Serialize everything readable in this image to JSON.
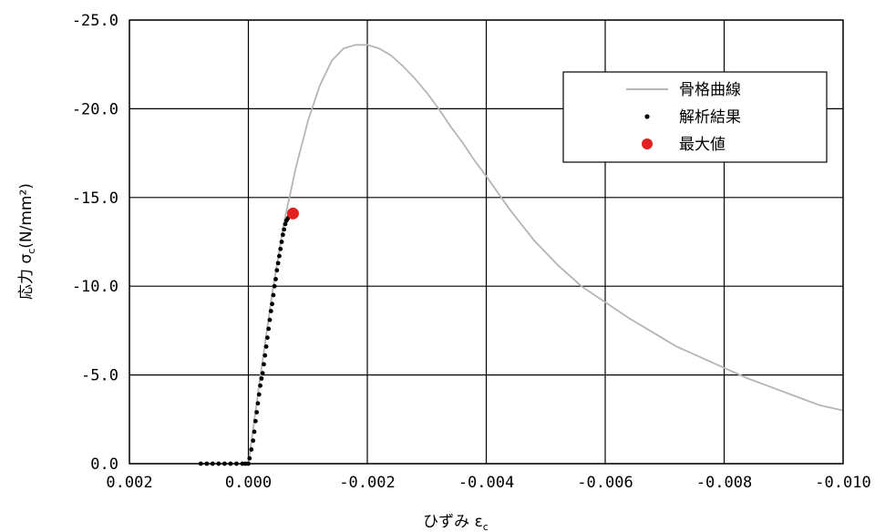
{
  "chart_data": {
    "type": "scatter",
    "xlabel": "ひずみ ε",
    "xlabel_sub": "c",
    "ylabel": "応力 σ",
    "ylabel_sub": "c",
    "ylabel_unit": "(N/mm²)",
    "xlim": [
      0.002,
      -0.01
    ],
    "ylim": [
      0,
      -25
    ],
    "x_ticks": [
      0.002,
      0.0,
      -0.002,
      -0.004,
      -0.006,
      -0.008,
      -0.01
    ],
    "x_tick_labels": [
      "0.002",
      "0.000",
      "-0.002",
      "-0.004",
      "-0.006",
      "-0.008",
      "-0.010"
    ],
    "y_ticks": [
      0,
      -5,
      -10,
      -15,
      -20,
      -25
    ],
    "y_tick_labels": [
      "0.0",
      "-5.0",
      "-10.0",
      "-15.0",
      "-20.0",
      "-25.0"
    ],
    "grid": true,
    "legend_position": "top-right",
    "series": [
      {
        "name": "骨格曲線",
        "kind": "line",
        "color": "#b5b5b5",
        "x": [
          0.0,
          -0.0002,
          -0.0004,
          -0.0006,
          -0.0008,
          -0.001,
          -0.0012,
          -0.0014,
          -0.0016,
          -0.0018,
          -0.002,
          -0.0022,
          -0.0024,
          -0.0026,
          -0.0028,
          -0.003,
          -0.0032,
          -0.0034,
          -0.0036,
          -0.0038,
          -0.004,
          -0.0044,
          -0.0048,
          -0.0052,
          -0.0056,
          -0.006,
          -0.0064,
          -0.0068,
          -0.0072,
          -0.0076,
          -0.008,
          -0.0084,
          -0.0088,
          -0.0092,
          -0.0096,
          -0.01
        ],
        "y": [
          0.0,
          -4.9,
          -9.6,
          -13.6,
          -16.7,
          -19.3,
          -21.3,
          -22.7,
          -23.4,
          -23.6,
          -23.6,
          -23.4,
          -23.0,
          -22.4,
          -21.7,
          -20.9,
          -20.0,
          -19.0,
          -18.1,
          -17.1,
          -16.2,
          -14.3,
          -12.6,
          -11.2,
          -10.0,
          -9.1,
          -8.2,
          -7.4,
          -6.6,
          -6.0,
          -5.4,
          -4.8,
          -4.3,
          -3.8,
          -3.3,
          -3.0
        ]
      },
      {
        "name": "解析結果",
        "kind": "points",
        "color": "#000000",
        "x": [
          0.0008,
          0.0007,
          0.0006,
          0.0005,
          0.0004,
          0.0003,
          0.0002,
          0.0001,
          5e-05,
          0.0,
          -2e-05,
          -5e-05,
          -8e-05,
          -0.0001,
          -0.00012,
          -0.00014,
          -0.00016,
          -0.00018,
          -0.0002,
          -0.00022,
          -0.00024,
          -0.00026,
          -0.00028,
          -0.0003,
          -0.00032,
          -0.00034,
          -0.00036,
          -0.00038,
          -0.0004,
          -0.00042,
          -0.00044,
          -0.00046,
          -0.00048,
          -0.0005,
          -0.00052,
          -0.00054,
          -0.00056,
          -0.00058,
          -0.0006,
          -0.00062,
          -0.00064,
          -0.00066,
          -0.00068,
          -0.0007,
          -0.00072
        ],
        "y": [
          0.0,
          0.0,
          0.0,
          0.0,
          0.0,
          0.0,
          0.0,
          0.0,
          0.0,
          0.0,
          -0.3,
          -0.8,
          -1.3,
          -1.8,
          -2.4,
          -2.9,
          -3.4,
          -3.9,
          -4.4,
          -4.8,
          -5.1,
          -5.6,
          -6.1,
          -6.6,
          -7.1,
          -7.6,
          -8.1,
          -8.6,
          -9.0,
          -9.5,
          -10.0,
          -10.4,
          -10.9,
          -11.3,
          -11.7,
          -12.1,
          -12.5,
          -12.9,
          -13.2,
          -13.5,
          -13.7,
          -13.8,
          -13.9,
          -14.0,
          -14.1
        ]
      },
      {
        "name": "最大値",
        "kind": "marker",
        "color": "#e32020",
        "x": [
          -0.00075
        ],
        "y": [
          -14.1
        ]
      }
    ]
  }
}
